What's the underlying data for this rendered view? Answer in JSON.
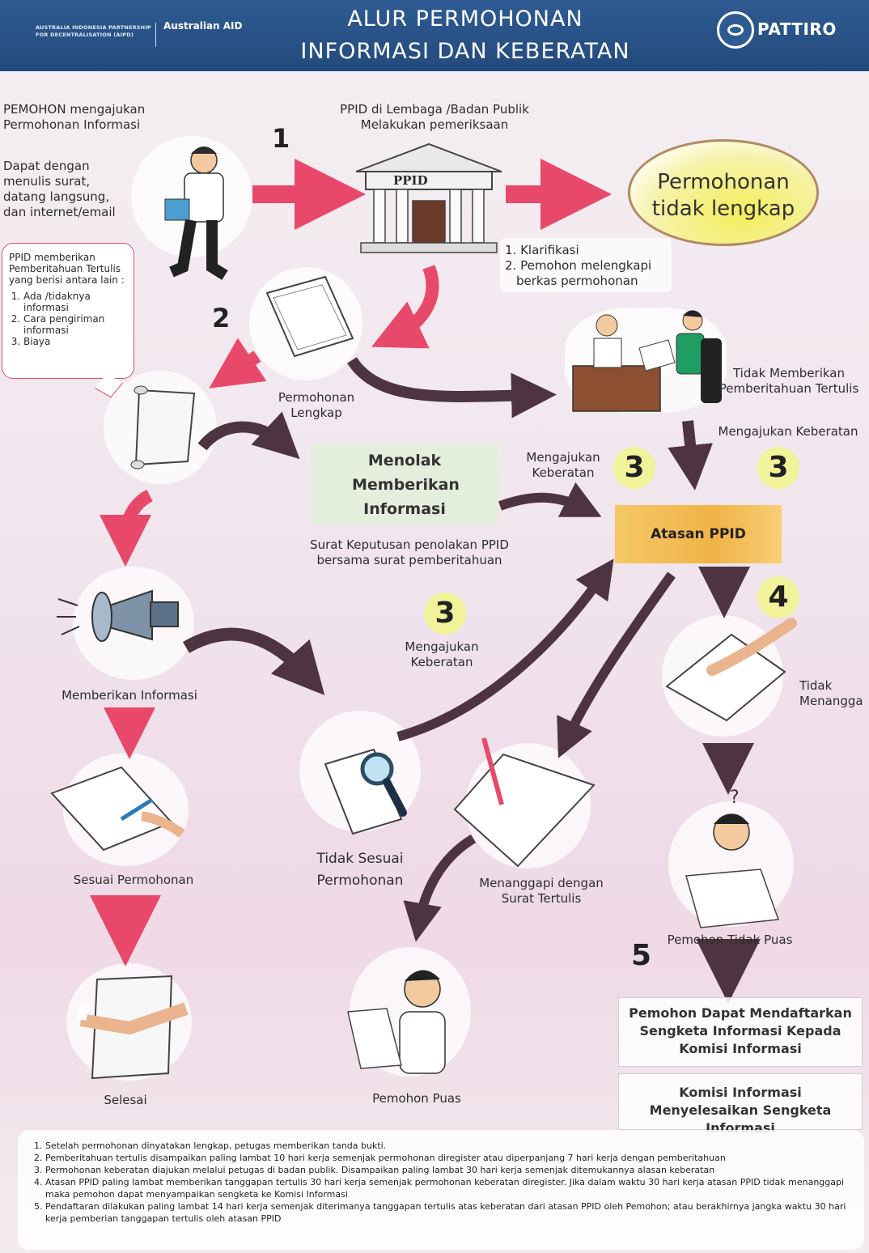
{
  "header": {
    "partner": "AUSTRALIA INDONESIA PARTNERSHIP FOR DECENTRALISATION (AIPD)",
    "aid": "Australian AID",
    "title_line1": "ALUR PERMOHONAN",
    "title_line2": "INFORMASI DAN KEBERATAN",
    "org": "PATTIRO"
  },
  "steps": {
    "pemohon_title": "PEMOHON mengajukan Permohonan Informasi",
    "pemohon_desc": "Dapat dengan menulis surat, datang langsung, dan internet/email",
    "ppid_title": "PPID di Lembaga /Badan Publik Melakukan pemeriksaan",
    "ppid_sign": "PPID",
    "tidak_lengkap": "Permohonan tidak lengkap",
    "klarifikasi_1": "1. Klarifikasi",
    "klarifikasi_2": "2. Pemohon melengkapi berkas permohonan",
    "lengkap": "Permohonan Lengkap",
    "tidak_memberikan": "Tidak Memberikan Pemberitahuan Tertulis",
    "mengajukan_keberatan_right": "Mengajukan Keberatan",
    "menolak": "Menolak Memberikan Informasi",
    "surat_keputusan": "Surat Keputusan penolakan PPID bersama surat pemberitahuan",
    "mengajukan_keberatan_mid": "Mengajukan Keberatan",
    "atasan": "Atasan PPID",
    "mengajukan_keberatan_low": "Mengajukan Keberatan",
    "memberikan_informasi": "Memberikan Informasi",
    "tidak_menanggapi": "Tidak Menangga",
    "sesuai": "Sesuai Permohonan",
    "tidak_sesuai": "Tidak Sesuai Permohonan",
    "menanggapi": "Menanggapi dengan Surat Tertulis",
    "tidak_puas": "Pemohon Tidak Puas",
    "selesai": "Selesai",
    "puas": "Pemohon Puas",
    "sengketa": "Pemohon Dapat Mendaftarkan Sengketa Informasi Kepada Komisi Informasi",
    "komisi": "Komisi Informasi Menyelesaikan Sengketa Informasi"
  },
  "callout": {
    "title": "PPID memberikan Pemberitahuan Tertulis yang berisi antara lain :",
    "items": [
      "Ada /tidaknya informasi",
      "Cara pengiriman informasi",
      "Biaya"
    ]
  },
  "numbers": {
    "n1": "1",
    "n2": "2",
    "n3a": "3",
    "n3b": "3",
    "n3c": "3",
    "n4": "4",
    "n5": "5"
  },
  "notes": [
    "Setelah permohonan dinyatakan lengkap, petugas memberikan tanda bukti.",
    "Pemberitahuan tertulis disampaikan paling lambat 10 hari kerja semenjak permohonan diregister atau diperpanjang 7 hari kerja dengan pemberitahuan",
    "Permohonan keberatan diajukan melalui petugas di badan publik. Disampaikan paling lambat 30 hari kerja semenjak ditemukannya alasan keberatan",
    "Atasan PPID paling lambat memberikan tanggapan tertulis 30 hari kerja semenjak permohonan keberatan diregister. Jika dalam waktu 30 hari kerja atasan PPID tidak menanggapi maka pemohon dapat menyampaikan sengketa ke Komisi Informasi",
    "Pendaftaran dilakukan paling lambat 14 hari kerja semenjak diterimanya tanggapan tertulis atas keberatan dari atasan PPID oleh Pemohon; atau berakhirnya jangka waktu 30 hari kerja pemberian tanggapan tertulis oleh atasan PPID"
  ],
  "colors": {
    "header_blue": "#2e5b93",
    "arrow_pink": "#e8496a",
    "arrow_brown": "#4e3440",
    "atasan_yellow": "#f0b347",
    "number_bubble": "#f1f29a"
  }
}
